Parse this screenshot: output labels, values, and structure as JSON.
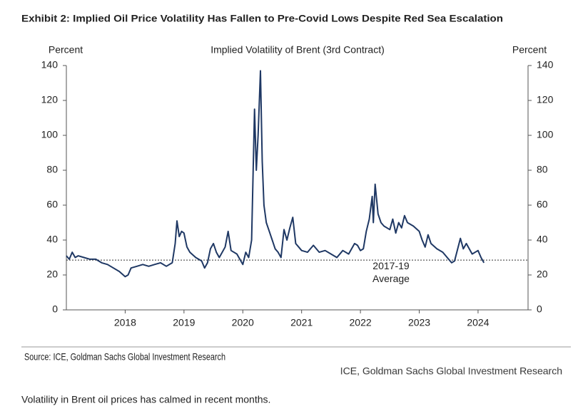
{
  "chart_data": {
    "type": "line",
    "title": "Exhibit 2: Implied Oil Price Volatility Has Fallen to Pre-Covid Lows Despite Red Sea Escalation",
    "subtitle": "Implied Volatility of Brent (3rd Contract)",
    "y_label": "Percent",
    "y2_label": "Percent",
    "color": "#1f3864",
    "x": [
      2017.0,
      2017.05,
      2017.1,
      2017.15,
      2017.2,
      2017.3,
      2017.4,
      2017.5,
      2017.6,
      2017.7,
      2017.8,
      2017.9,
      2018.0,
      2018.05,
      2018.1,
      2018.2,
      2018.3,
      2018.4,
      2018.5,
      2018.6,
      2018.7,
      2018.8,
      2018.85,
      2018.88,
      2018.92,
      2018.96,
      2019.0,
      2019.05,
      2019.1,
      2019.2,
      2019.3,
      2019.35,
      2019.4,
      2019.45,
      2019.5,
      2019.55,
      2019.6,
      2019.7,
      2019.75,
      2019.8,
      2019.9,
      2019.95,
      2020.0,
      2020.05,
      2020.1,
      2020.15,
      2020.2,
      2020.23,
      2020.26,
      2020.3,
      2020.33,
      2020.36,
      2020.4,
      2020.45,
      2020.5,
      2020.55,
      2020.6,
      2020.65,
      2020.7,
      2020.75,
      2020.8,
      2020.85,
      2020.9,
      2020.95,
      2021.0,
      2021.1,
      2021.2,
      2021.3,
      2021.4,
      2021.5,
      2021.6,
      2021.7,
      2021.8,
      2021.9,
      2021.95,
      2022.0,
      2022.05,
      2022.1,
      2022.15,
      2022.2,
      2022.22,
      2022.25,
      2022.3,
      2022.35,
      2022.4,
      2022.5,
      2022.55,
      2022.6,
      2022.65,
      2022.7,
      2022.75,
      2022.8,
      2022.9,
      2023.0,
      2023.05,
      2023.1,
      2023.15,
      2023.2,
      2023.3,
      2023.4,
      2023.5,
      2023.55,
      2023.6,
      2023.7,
      2023.75,
      2023.8,
      2023.9,
      2024.0,
      2024.05,
      2024.1
    ],
    "values": [
      31,
      29,
      33,
      30,
      31,
      30,
      29,
      29,
      27,
      26,
      24,
      22,
      19,
      20,
      24,
      25,
      26,
      25,
      26,
      27,
      25,
      27,
      38,
      51,
      42,
      45,
      44,
      36,
      33,
      30,
      28,
      24,
      27,
      35,
      38,
      33,
      30,
      36,
      45,
      34,
      32,
      29,
      26,
      33,
      30,
      40,
      115,
      80,
      100,
      137,
      85,
      60,
      50,
      45,
      40,
      35,
      33,
      30,
      46,
      40,
      47,
      53,
      38,
      36,
      34,
      33,
      37,
      33,
      34,
      32,
      30,
      34,
      32,
      38,
      37,
      34,
      35,
      45,
      52,
      65,
      50,
      72,
      55,
      50,
      48,
      46,
      52,
      44,
      50,
      47,
      54,
      50,
      48,
      45,
      40,
      36,
      43,
      38,
      35,
      33,
      29,
      27,
      28,
      41,
      35,
      38,
      32,
      34,
      30,
      27
    ],
    "xlim": [
      2017.0,
      2024.85
    ],
    "xticks": [
      2018,
      2019,
      2020,
      2021,
      2022,
      2023,
      2024
    ],
    "ylim": [
      0,
      140
    ],
    "yticks": [
      0,
      20,
      40,
      60,
      80,
      100,
      120,
      140
    ],
    "y2lim": [
      0,
      140
    ],
    "y2ticks": [
      0,
      20,
      40,
      60,
      80,
      100,
      120,
      140
    ],
    "reference_line": {
      "value": 28.5,
      "label": [
        "2017-19",
        "Average"
      ]
    },
    "source": "Source: ICE, Goldman Sachs Global Investment Research"
  },
  "watermark": "ICE, Goldman Sachs Global Investment Research",
  "caption": "Volatility in Brent oil prices has calmed in recent months."
}
